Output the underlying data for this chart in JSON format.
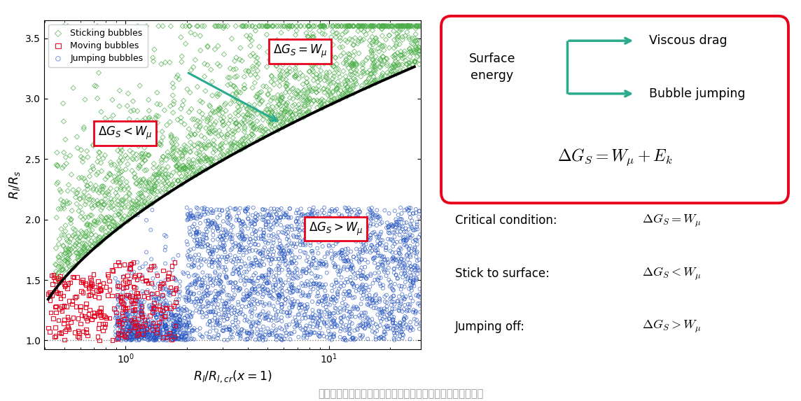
{
  "fig_width": 11.44,
  "fig_height": 5.73,
  "bg_color": "#ffffff",
  "scatter_seed": 42,
  "green_color": "#4daf4a",
  "red_color": "#e8001c",
  "blue_color": "#2050c0",
  "teal_color": "#2aab8e",
  "curve_color": "#000000",
  "xlabel": "$R_l/R_{l,cr}(x=1)$",
  "ylabel": "$R_l/R_s$",
  "ylim": [
    0.93,
    3.65
  ],
  "yticks": [
    1.0,
    1.5,
    2.0,
    2.5,
    3.0,
    3.5
  ],
  "caption": "气泡融合后的状态相图，以及融合诱导气泡从表面脱离的机理",
  "caption_color": "#999999",
  "caption_fontsize": 10.5
}
